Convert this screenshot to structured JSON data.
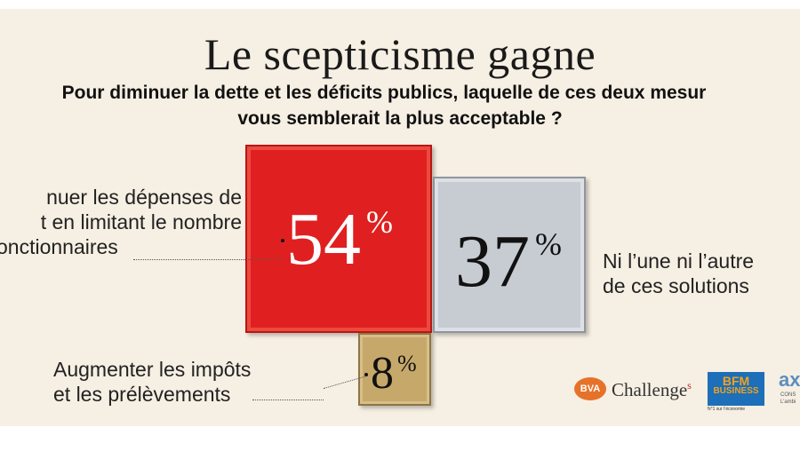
{
  "chart_data": {
    "type": "bar",
    "title": "Le scepticisme gagne",
    "subtitle_lines": [
      "Pour diminuer la dette et les déficits publics, laquelle de ces deux mesur",
      "vous semblerait la plus acceptable ?"
    ],
    "categories": [
      "nuer les dépenses de t en limitant le nombre onctionnaires",
      "Ni l’une ni l’autre de ces solutions",
      "Augmenter les impôts et les prélèvements"
    ],
    "values": [
      54,
      37,
      8
    ],
    "unit": "%",
    "colors": [
      "#e02020",
      "#c7ccd3",
      "#c6a86b"
    ]
  },
  "labels": {
    "left": [
      "nuer les dépenses de",
      "t en limitant le nombre",
      "onctionnaires"
    ],
    "right": [
      "Ni l’une ni l’autre",
      "de ces solutions"
    ],
    "bottom": [
      "Augmenter les impôts",
      "et les prélèvements"
    ]
  },
  "percent_sign": "%",
  "logos": {
    "bva": "BVA",
    "challenges": "Challenge",
    "challenges_suffix": "s",
    "bfm_top": "BFM",
    "bfm_mid": "BUSINESS",
    "bfm_sub": "N°1 sur l’économie",
    "ax": "ax",
    "ax_sub": [
      "CONS",
      "L’ambi"
    ]
  }
}
